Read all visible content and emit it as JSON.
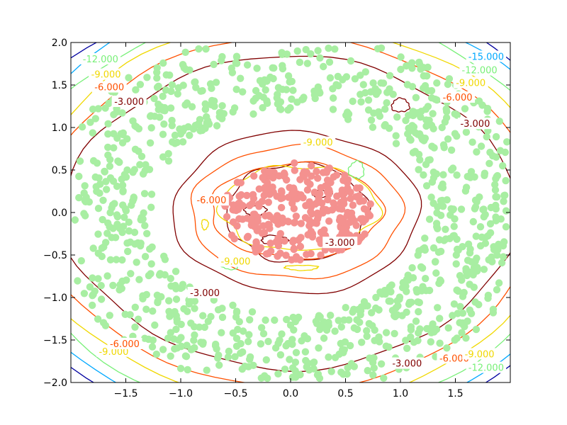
{
  "chart_data": {
    "type": "scatter",
    "title": "",
    "xlabel": "",
    "ylabel": "",
    "xlim": [
      -2.0,
      2.0
    ],
    "ylim": [
      -2.0,
      2.0
    ],
    "grid": false,
    "x_ticks": [
      -1.5,
      -1.0,
      -0.5,
      0.0,
      0.5,
      1.0,
      1.5
    ],
    "x_tick_labels": [
      "−1.5",
      "−1.0",
      "−0.5",
      "0.0",
      "0.5",
      "1.0",
      "1.5"
    ],
    "y_ticks": [
      -2.0,
      -1.5,
      -1.0,
      -0.5,
      0.0,
      0.5,
      1.0,
      1.5,
      2.0
    ],
    "y_tick_labels": [
      "−2.0",
      "−1.5",
      "−1.0",
      "−0.5",
      "0.0",
      "0.5",
      "1.0",
      "1.5",
      "2.0"
    ],
    "series": [
      {
        "role": "inner-class",
        "color": "#f4918f",
        "region": "disk",
        "radius_max": 0.7,
        "count": 300
      },
      {
        "role": "outer-class",
        "color": "#a8eea2",
        "region": "annulus",
        "radius_min": 1.2,
        "radius_max": 2.0,
        "count": 1000
      }
    ],
    "contours": [
      {
        "level": -15,
        "label": "-15.000",
        "color": "#0000a0"
      },
      {
        "level": -15,
        "label": "-15.000",
        "color": "#00a8ff"
      },
      {
        "level": -12,
        "label": "-12.000",
        "color": "#78f078"
      },
      {
        "level": -9,
        "label": "-9.000",
        "color": "#f0d800"
      },
      {
        "level": -6,
        "label": "-6.000",
        "color": "#ff5000"
      },
      {
        "level": -3,
        "label": "-3.000",
        "color": "#800000"
      }
    ],
    "contour_labels": [
      {
        "text": "-12.000",
        "x": -1.73,
        "y": 1.8,
        "color": "#78f078"
      },
      {
        "text": "-9.000",
        "x": -1.68,
        "y": 1.62,
        "color": "#f0d800"
      },
      {
        "text": "-6.000",
        "x": -1.65,
        "y": 1.47,
        "color": "#ff5000"
      },
      {
        "text": "-3.000",
        "x": -1.47,
        "y": 1.3,
        "color": "#800000"
      },
      {
        "text": "-15.000",
        "x": 1.78,
        "y": 1.83,
        "color": "#00a8ff"
      },
      {
        "text": "-12.000",
        "x": 1.72,
        "y": 1.67,
        "color": "#78f078"
      },
      {
        "text": "-9.000",
        "x": 1.64,
        "y": 1.52,
        "color": "#f0d800"
      },
      {
        "text": "-6.000",
        "x": 1.52,
        "y": 1.35,
        "color": "#ff5000"
      },
      {
        "text": "-3.000",
        "x": 1.68,
        "y": 1.04,
        "color": "#800000"
      },
      {
        "text": "-9.000",
        "x": 0.25,
        "y": 0.82,
        "color": "#f0d800"
      },
      {
        "text": "-6.000",
        "x": -0.72,
        "y": 0.14,
        "color": "#ff5000"
      },
      {
        "text": "-3.000",
        "x": 0.45,
        "y": -0.36,
        "color": "#800000"
      },
      {
        "text": "-9.000",
        "x": -0.5,
        "y": -0.58,
        "color": "#f0d800"
      },
      {
        "text": "-3.000",
        "x": -0.78,
        "y": -0.95,
        "color": "#800000"
      },
      {
        "text": "-9.000",
        "x": -1.61,
        "y": -1.64,
        "color": "#f0d800"
      },
      {
        "text": "-6.000",
        "x": -1.51,
        "y": -1.55,
        "color": "#ff5000"
      },
      {
        "text": "-3.000",
        "x": 1.06,
        "y": -1.78,
        "color": "#800000"
      },
      {
        "text": "-6.000",
        "x": 1.49,
        "y": -1.72,
        "color": "#ff5000"
      },
      {
        "text": "-9.000",
        "x": 1.72,
        "y": -1.67,
        "color": "#f0d800"
      },
      {
        "text": "-12.000",
        "x": 1.78,
        "y": -1.83,
        "color": "#78f078"
      }
    ]
  }
}
